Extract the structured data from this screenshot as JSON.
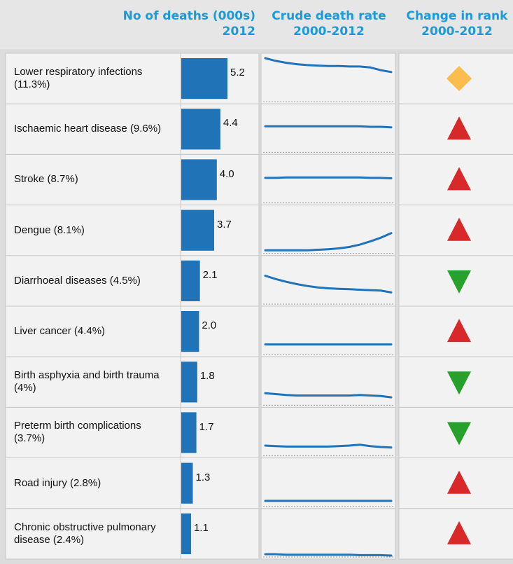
{
  "header": {
    "deaths": [
      "No of deaths (000s)",
      "2012"
    ],
    "crude": [
      "Crude death rate",
      "2000-2012"
    ],
    "rank": [
      "Change in rank",
      "2000-2012"
    ]
  },
  "trend_range": [
    0,
    100
  ],
  "rows": [
    {
      "cause": "Lower respiratory infections (11.3%)",
      "deaths": 5.2,
      "deaths_label": "5.2",
      "trend": [
        94,
        88,
        84,
        81,
        79,
        78,
        77,
        77,
        76,
        76,
        74,
        68,
        64
      ],
      "rank_change": "same"
    },
    {
      "cause": "Ischaemic heart disease (9.6%)",
      "deaths": 4.4,
      "deaths_label": "4.4",
      "trend": [
        56,
        56,
        56,
        56,
        56,
        56,
        56,
        56,
        56,
        56,
        55,
        55,
        54
      ],
      "rank_change": "up"
    },
    {
      "cause": "Stroke (8.7%)",
      "deaths": 4.0,
      "deaths_label": "4.0",
      "trend": [
        54,
        54,
        55,
        55,
        55,
        55,
        55,
        55,
        55,
        55,
        54,
        54,
        53
      ],
      "rank_change": "up"
    },
    {
      "cause": "Dengue (8.1%)",
      "deaths": 3.7,
      "deaths_label": "3.7",
      "trend": [
        7,
        7,
        7,
        7,
        7,
        8,
        9,
        11,
        14,
        19,
        26,
        34,
        44
      ],
      "rank_change": "up"
    },
    {
      "cause": "Diarrhoeal diseases (4.5%)",
      "deaths": 2.1,
      "deaths_label": "2.1",
      "trend": [
        61,
        54,
        48,
        43,
        39,
        36,
        34,
        33,
        32,
        31,
        30,
        29,
        25
      ],
      "rank_change": "down"
    },
    {
      "cause": "Liver cancer (4.4%)",
      "deaths": 2.0,
      "deaths_label": "2.0",
      "trend": [
        22,
        22,
        22,
        22,
        22,
        22,
        22,
        22,
        22,
        22,
        22,
        22,
        22
      ],
      "rank_change": "up"
    },
    {
      "cause": "Birth asphyxia and birth trauma (4%)",
      "deaths": 1.8,
      "deaths_label": "1.8",
      "trend": [
        26,
        24,
        22,
        21,
        21,
        21,
        21,
        21,
        21,
        22,
        21,
        20,
        17
      ],
      "rank_change": "down"
    },
    {
      "cause": "Preterm birth complications (3.7%)",
      "deaths": 1.7,
      "deaths_label": "1.7",
      "trend": [
        22,
        21,
        20,
        20,
        20,
        20,
        20,
        21,
        22,
        24,
        21,
        19,
        18
      ],
      "rank_change": "down"
    },
    {
      "cause": "Road injury (2.8%)",
      "deaths": 1.3,
      "deaths_label": "1.3",
      "trend": [
        12,
        12,
        12,
        12,
        12,
        12,
        12,
        12,
        12,
        12,
        12,
        12,
        12
      ],
      "rank_change": "up"
    },
    {
      "cause": "Chronic obstructive pulmonary disease (2.4%)",
      "deaths": 1.1,
      "deaths_label": "1.1",
      "trend": [
        6,
        6,
        5,
        5,
        5,
        5,
        5,
        5,
        5,
        4,
        4,
        4,
        3
      ],
      "rank_change": "up"
    }
  ]
}
